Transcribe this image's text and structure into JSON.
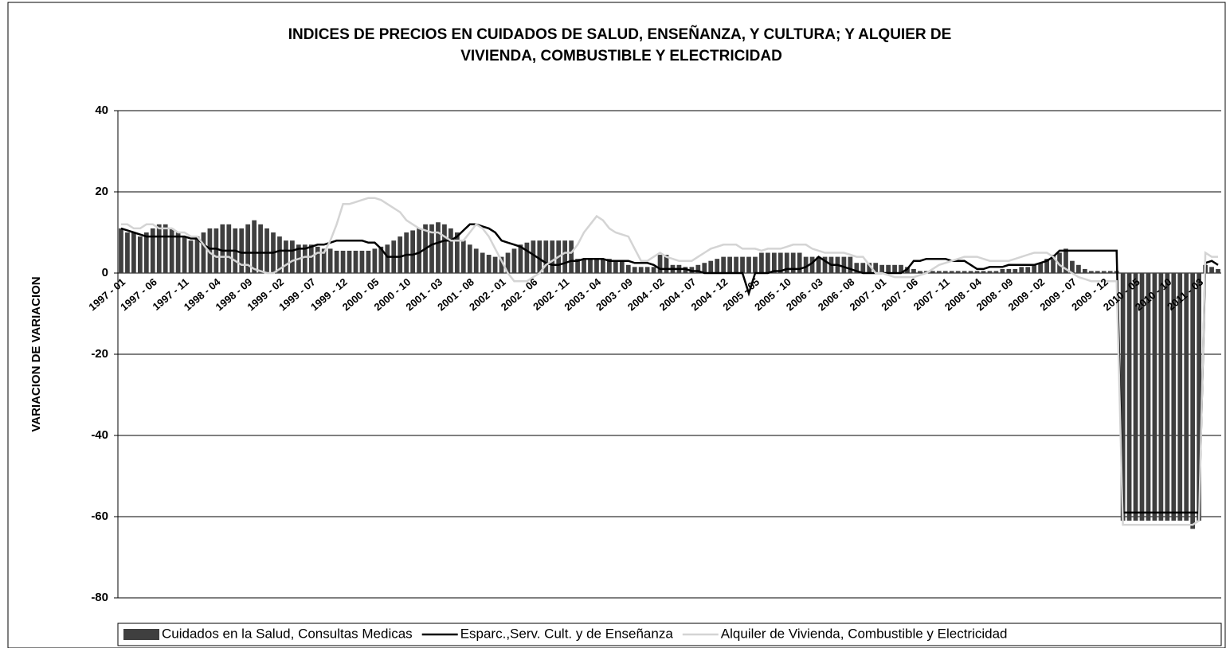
{
  "chart_data": {
    "type": "bar",
    "title": [
      "INDICES DE PRECIOS EN CUIDADOS DE SALUD, ENSEÑANZA, Y CULTURA; Y ALQUIER DE",
      "VIVIENDA, COMBUSTIBLE Y ELECTRICIDAD"
    ],
    "y_label": "VARIACION DE VARIACION",
    "ylim": [
      -80,
      40
    ],
    "yticks": [
      -80,
      -60,
      -40,
      -20,
      0,
      20,
      40
    ],
    "grid": true,
    "legend": "bottom",
    "categories": [
      "1997 - 01",
      null,
      null,
      null,
      null,
      "1997 - 06",
      null,
      null,
      null,
      null,
      "1997 - 11",
      null,
      null,
      null,
      null,
      "1998 - 04",
      null,
      null,
      null,
      null,
      "1998 - 09",
      null,
      null,
      null,
      null,
      "1999 - 02",
      null,
      null,
      null,
      null,
      "1999 - 07",
      null,
      null,
      null,
      null,
      "1999 - 12",
      null,
      null,
      null,
      null,
      "2000 - 05",
      null,
      null,
      null,
      null,
      "2000 - 10",
      null,
      null,
      null,
      null,
      "2001 - 03",
      null,
      null,
      null,
      null,
      "2001 - 08",
      null,
      null,
      null,
      null,
      "2002 - 01",
      null,
      null,
      null,
      null,
      "2002 - 06",
      null,
      null,
      null,
      null,
      "2002 - 11",
      null,
      null,
      null,
      null,
      "2003 - 04",
      null,
      null,
      null,
      null,
      "2003 - 09",
      null,
      null,
      null,
      null,
      "2004 - 02",
      null,
      null,
      null,
      null,
      "2004 - 07",
      null,
      null,
      null,
      null,
      "2004 - 12",
      null,
      null,
      null,
      null,
      "2005 - 05",
      null,
      null,
      null,
      null,
      "2005 - 10",
      null,
      null,
      null,
      null,
      "2006 - 03",
      null,
      null,
      null,
      null,
      "2006 - 08",
      null,
      null,
      null,
      null,
      "2007 - 01",
      null,
      null,
      null,
      null,
      "2007 - 06",
      null,
      null,
      null,
      null,
      "2007 - 11",
      null,
      null,
      null,
      null,
      "2008 - 04",
      null,
      null,
      null,
      null,
      "2008 - 09",
      null,
      null,
      null,
      null,
      "2009 - 02",
      null,
      null,
      null,
      null,
      "2009 - 07",
      null,
      null,
      null,
      null,
      "2009 - 12",
      null,
      null,
      null,
      null,
      "2010 - 05",
      null,
      null,
      null,
      null,
      "2010 - 10",
      null,
      null,
      null,
      null,
      "2011 - 03",
      null,
      null,
      null
    ],
    "series": [
      {
        "name": "Cuidados en la Salud, Consultas Medicas",
        "type": "bar",
        "color": "#3f3f3f",
        "values": [
          11,
          10,
          10,
          9,
          10,
          11,
          12,
          12,
          11,
          10,
          9,
          8,
          9,
          10,
          11,
          11,
          12,
          12,
          11,
          11,
          12,
          13,
          12,
          11,
          10,
          9,
          8,
          8,
          7,
          7,
          7,
          6.5,
          6,
          6,
          5.5,
          5.5,
          5.5,
          5.5,
          5.5,
          5.5,
          6,
          6.5,
          7,
          8,
          9,
          10,
          10.5,
          11,
          12,
          12,
          12.5,
          12,
          11,
          10,
          8,
          7,
          6,
          5,
          4.5,
          4,
          4,
          5,
          6,
          7,
          7.5,
          8,
          8,
          8,
          8,
          8,
          8,
          8,
          3.5,
          3.5,
          3.5,
          3.5,
          3.5,
          3.5,
          3,
          3,
          2,
          1.5,
          1.5,
          1.5,
          1.5,
          4.5,
          4.5,
          2,
          2,
          1.5,
          1.5,
          2,
          2.5,
          3,
          3.5,
          4,
          4,
          4,
          4,
          4,
          4,
          5,
          5,
          5,
          5,
          5,
          5,
          5,
          4,
          4,
          4,
          4,
          4,
          4,
          4,
          4,
          2.5,
          2.5,
          2.5,
          2.5,
          2,
          2,
          2,
          2,
          1.5,
          1,
          0.5,
          0.5,
          0.5,
          0.5,
          0.5,
          0.5,
          0.5,
          0.5,
          0.5,
          0.5,
          0.5,
          0.5,
          0.5,
          1,
          1,
          1,
          1.5,
          1.5,
          2,
          2.5,
          3.5,
          4.5,
          5,
          6,
          3,
          2,
          1,
          0.5,
          0.5,
          0.5,
          0.5,
          0.5,
          -61,
          -61,
          -61,
          -61,
          -61,
          -61,
          -61,
          -61,
          -61,
          -61,
          -61,
          -63,
          -61,
          2,
          1.5,
          1
        ]
      },
      {
        "name": "Esparc.,Serv. Cult. y de Enseñanza",
        "type": "line",
        "color": "#000000",
        "values": [
          11,
          10.5,
          10,
          9.5,
          9,
          9,
          9,
          9,
          9,
          9,
          9,
          8.5,
          8.5,
          7,
          6,
          6,
          5.5,
          5.5,
          5.5,
          5,
          5,
          5,
          5,
          5,
          5,
          5.5,
          5.5,
          5.5,
          6,
          6,
          6.5,
          7,
          7,
          7.5,
          8,
          8,
          8,
          8,
          8,
          7.5,
          7.5,
          6,
          4,
          4,
          4,
          4.5,
          4.5,
          5,
          6,
          7,
          7.5,
          8,
          8,
          9,
          10.5,
          12,
          12,
          11.5,
          11,
          10,
          8,
          7.5,
          7,
          6.5,
          5.5,
          4.5,
          3.5,
          2.5,
          2,
          2,
          2.5,
          3,
          3,
          3.5,
          3.5,
          3.5,
          3.5,
          3,
          3,
          3,
          3,
          2.5,
          2.5,
          2.5,
          2,
          1,
          1,
          1,
          1,
          1,
          0.5,
          0.5,
          0,
          0,
          0,
          0,
          0,
          0,
          0,
          -5,
          0,
          0,
          0,
          0.5,
          0.5,
          1,
          1,
          1,
          1.5,
          2.5,
          4,
          3,
          2,
          2,
          1.5,
          1,
          0.5,
          0,
          0,
          0,
          0,
          0,
          0,
          0,
          1,
          3,
          3,
          3.5,
          3.5,
          3.5,
          3.5,
          3,
          3,
          3,
          2,
          1,
          1,
          1.5,
          1.5,
          1.5,
          2,
          2,
          2,
          2,
          2,
          2.5,
          3,
          4,
          5.5,
          5.5,
          5.5,
          5.5,
          5.5,
          5.5,
          5.5,
          5.5,
          5.5,
          5.5,
          -59,
          -59,
          -59,
          -59,
          -59,
          -59,
          -59,
          -59,
          -59,
          -59,
          -59,
          -59,
          -59,
          2.5,
          3,
          2
        ]
      },
      {
        "name": "Alquiler de Vivienda, Combustible y Electricidad",
        "type": "line",
        "color": "#d4d4d4",
        "values": [
          12,
          12,
          11,
          11,
          12,
          12,
          11,
          11,
          11,
          10,
          10,
          9,
          9,
          7,
          5,
          4,
          4,
          4,
          3,
          2,
          2,
          1,
          0.5,
          0,
          0,
          1,
          2,
          3,
          3.5,
          4,
          4,
          5,
          5,
          8,
          12,
          17,
          17,
          17.5,
          18,
          18.5,
          18.5,
          18,
          17,
          16,
          15,
          13,
          12,
          11,
          10.5,
          10,
          10,
          9,
          8,
          8,
          8,
          10,
          12,
          11,
          9,
          6,
          3,
          0,
          -2,
          -2,
          -2,
          -1,
          0,
          2,
          3,
          4,
          5,
          5,
          7,
          10,
          12,
          14,
          13,
          11,
          10,
          9.5,
          9,
          6,
          3,
          3,
          4,
          5,
          4,
          3.5,
          3,
          3,
          3,
          4,
          5,
          6,
          6.5,
          7,
          7,
          7,
          6,
          6,
          6,
          5.5,
          6,
          6,
          6,
          6.5,
          7,
          7,
          7,
          6,
          5.5,
          5,
          5,
          5,
          5,
          4.5,
          4,
          4,
          2,
          0,
          0,
          -0.5,
          -1,
          -1,
          -1,
          -1,
          -0.5,
          0,
          1,
          2,
          2.5,
          3,
          3.5,
          4,
          4,
          4,
          3.5,
          3,
          3,
          3,
          3,
          3.5,
          4,
          4.5,
          5,
          5,
          5,
          4,
          2,
          1,
          0,
          -1,
          -1.5,
          -2,
          -2,
          -2,
          -2,
          -2,
          -62,
          -62,
          -62,
          -62,
          -62,
          -62,
          -62,
          -62,
          -62,
          -62,
          -62,
          -62,
          -61,
          5,
          4,
          4
        ]
      }
    ]
  }
}
